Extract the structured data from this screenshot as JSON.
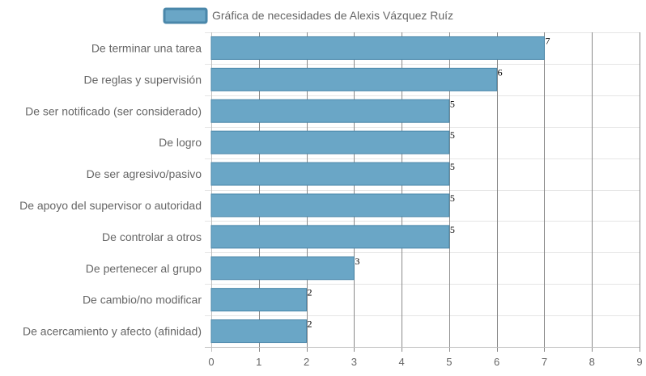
{
  "chart_data": {
    "type": "bar",
    "orientation": "horizontal",
    "categories": [
      "De terminar una tarea",
      "De reglas y supervisión",
      "De ser notificado (ser considerado)",
      "De logro",
      "De ser agresivo/pasivo",
      "De apoyo del supervisor o autoridad",
      "De controlar a otros",
      "De pertenecer al grupo",
      "De cambio/no modificar",
      "De acercamiento y afecto (afinidad)"
    ],
    "series": [
      {
        "name": "Gráfica de necesidades de Alexis Vázquez Ruíz",
        "values": [
          7,
          6,
          5,
          5,
          5,
          5,
          5,
          3,
          2,
          2
        ]
      }
    ],
    "xlim": [
      0,
      9
    ],
    "xticks": [
      "0",
      "1",
      "2",
      "3",
      "4",
      "5",
      "6",
      "7",
      "8",
      "9"
    ],
    "grid": true,
    "legend_position": "top",
    "colors": {
      "bar_fill": "#6aa6c6",
      "bar_stroke": "#4a87aa",
      "grid": "#e5e5e5",
      "axis": "#bfbfbf"
    }
  }
}
